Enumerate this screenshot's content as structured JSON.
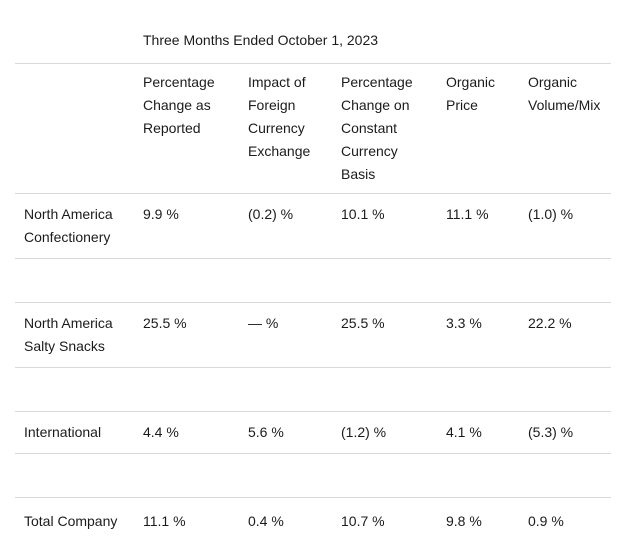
{
  "page": {
    "background_color": "#ffffff",
    "text_color": "#1b1b1b",
    "border_color": "#d9d9d9"
  },
  "table": {
    "title": "Three Months Ended October 1, 2023",
    "column_headers": [
      "Percentage\nChange as\nReported",
      "Impact of\nForeign\nCurrency\nExchange",
      "Percentage\nChange on\nConstant\nCurrency\nBasis",
      "Organic\nPrice",
      "Organic\nVolume/Mix"
    ],
    "rows": [
      {
        "label": "North America\nConfectionery",
        "values": [
          "9.9 %",
          "(0.2) %",
          "10.1 %",
          "11.1 %",
          "(1.0) %"
        ]
      },
      {
        "label": "North America\nSalty Snacks",
        "values": [
          "25.5 %",
          "— %",
          "25.5 %",
          "3.3 %",
          "22.2 %"
        ]
      },
      {
        "label": "International",
        "values": [
          "4.4 %",
          "5.6 %",
          "(1.2) %",
          "4.1 %",
          "(5.3) %"
        ]
      },
      {
        "label": "Total Company",
        "values": [
          "11.1 %",
          "0.4 %",
          "10.7 %",
          "9.8 %",
          "0.9 %"
        ]
      }
    ]
  }
}
